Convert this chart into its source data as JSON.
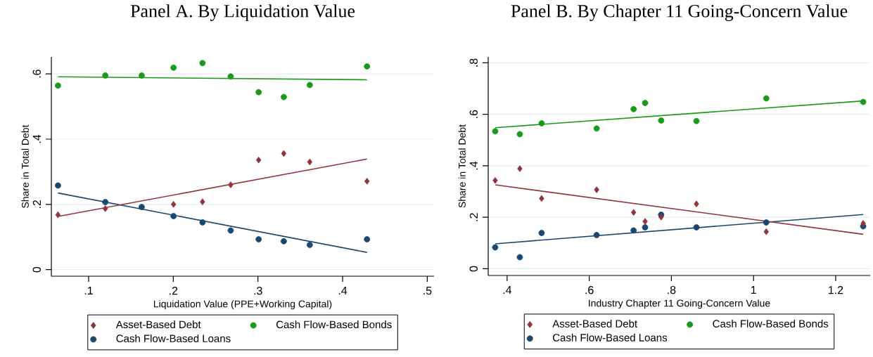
{
  "chart_data": [
    {
      "type": "scatter",
      "title": "Panel A. By Liquidation Value",
      "xlabel": "Liquidation Value (PPE+Working Capital)",
      "ylabel": "Share in Total Debt",
      "xlim": [
        0.056,
        0.508
      ],
      "ylim": [
        -0.02,
        0.652
      ],
      "xticks": [
        {
          "value": 0.1,
          "label": ".1"
        },
        {
          "value": 0.2,
          "label": ".2"
        },
        {
          "value": 0.3,
          "label": ".3"
        },
        {
          "value": 0.4,
          "label": ".4"
        },
        {
          "value": 0.5,
          "label": ".5"
        }
      ],
      "yticks": [
        0,
        {
          "value": 0.2,
          "label": ".2"
        },
        {
          "value": 0.4,
          "label": ".4"
        },
        {
          "value": 0.6,
          "label": ".6"
        }
      ],
      "grid": "y",
      "legend": "bottom",
      "series": [
        {
          "name": "Asset-Based Debt",
          "color": "#90353b",
          "marker": "diamond",
          "x": [
            0.0638,
            0.1197,
            0.1627,
            0.2003,
            0.2345,
            0.2678,
            0.3008,
            0.3305,
            0.3612,
            0.4288
          ],
          "values": [
            0.168,
            0.187,
            null,
            0.2,
            0.208,
            0.26,
            0.336,
            0.356,
            0.33,
            0.271
          ]
        },
        {
          "name": "Cash Flow-Based Bonds",
          "color": "#1a9a1a",
          "marker": "circle",
          "x": [
            0.0638,
            0.1197,
            0.1627,
            0.2003,
            0.2345,
            0.2678,
            0.3008,
            0.3305,
            0.3612,
            0.4288
          ],
          "values": [
            0.564,
            0.595,
            0.595,
            0.619,
            0.633,
            0.592,
            0.544,
            0.529,
            0.566,
            0.623
          ]
        },
        {
          "name": "Cash Flow-Based Loans",
          "color": "#1a476f",
          "marker": "circle",
          "x": [
            0.0638,
            0.1197,
            0.1627,
            0.2003,
            0.2345,
            0.2678,
            0.3008,
            0.3305,
            0.3612,
            0.4288
          ],
          "values": [
            0.258,
            0.207,
            0.192,
            0.164,
            0.145,
            0.12,
            0.093,
            0.087,
            0.076,
            0.093
          ]
        },
        {
          "type": "line",
          "color": "#90353b",
          "x": [
            0.0638,
            0.4288
          ],
          "values": [
            0.163,
            0.339
          ]
        },
        {
          "type": "line",
          "color": "#1a9a1a",
          "x": [
            0.0638,
            0.4288
          ],
          "values": [
            0.591,
            0.582
          ]
        },
        {
          "type": "line",
          "color": "#1a476f",
          "x": [
            0.0638,
            0.4288
          ],
          "values": [
            0.235,
            0.053
          ]
        }
      ]
    },
    {
      "type": "scatter",
      "title": "Panel B. By Chapter 11 Going-Concern Value",
      "xlabel": "Industry Chapter 11 Going-Concern Value",
      "ylabel": "Share in Total Debt",
      "xlim": [
        0.354,
        1.284
      ],
      "ylim": [
        -0.026,
        0.823
      ],
      "xticks": [
        {
          "value": 0.4,
          "label": ".4"
        },
        {
          "value": 0.6,
          "label": ".6"
        },
        {
          "value": 0.8,
          "label": ".8"
        },
        1,
        {
          "value": 1.2,
          "label": "1.2"
        }
      ],
      "yticks": [
        0,
        {
          "value": 0.2,
          "label": ".2"
        },
        {
          "value": 0.4,
          "label": ".4"
        },
        {
          "value": 0.6,
          "label": ".6"
        },
        {
          "value": 0.8,
          "label": ".8"
        }
      ],
      "grid": "y",
      "legend": "bottom",
      "series": [
        {
          "name": "Asset-Based Debt",
          "color": "#90353b",
          "marker": "diamond",
          "x": [
            0.371,
            0.431,
            0.484,
            0.618,
            0.708,
            0.736,
            0.775,
            0.861,
            1.031,
            1.267
          ],
          "values": [
            0.343,
            0.389,
            0.273,
            0.307,
            0.219,
            0.184,
            0.201,
            0.252,
            0.144,
            0.176
          ]
        },
        {
          "name": "Cash Flow-Based Bonds",
          "color": "#1a9a1a",
          "marker": "circle",
          "x": [
            0.371,
            0.431,
            0.484,
            0.618,
            0.708,
            0.736,
            0.775,
            0.861,
            1.031,
            1.267
          ],
          "values": [
            0.534,
            0.523,
            0.565,
            0.545,
            0.62,
            0.644,
            0.576,
            0.574,
            0.662,
            0.648
          ]
        },
        {
          "name": "Cash Flow-Based Loans",
          "color": "#1a476f",
          "marker": "circle",
          "x": [
            0.371,
            0.431,
            0.484,
            0.618,
            0.708,
            0.736,
            0.775,
            0.861,
            1.031,
            1.267
          ],
          "values": [
            0.083,
            0.045,
            0.139,
            0.131,
            0.149,
            0.161,
            0.21,
            0.161,
            0.18,
            0.165
          ]
        },
        {
          "type": "line",
          "color": "#90353b",
          "x": [
            0.371,
            1.267
          ],
          "values": [
            0.326,
            0.134
          ]
        },
        {
          "type": "line",
          "color": "#1a9a1a",
          "x": [
            0.371,
            1.267
          ],
          "values": [
            0.548,
            0.652
          ]
        },
        {
          "type": "line",
          "color": "#1a476f",
          "x": [
            0.371,
            1.267
          ],
          "values": [
            0.097,
            0.211
          ]
        }
      ]
    }
  ]
}
